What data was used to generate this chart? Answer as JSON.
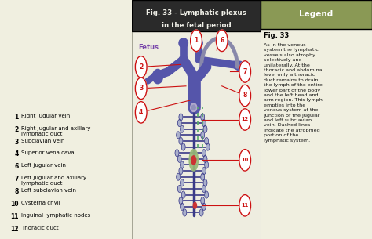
{
  "title_line1": "Fig. 33 - Lymphatic plexus",
  "title_line2": "in the fetal period",
  "title_bg": "#2a2a2a",
  "title_fg": "#f0f0e8",
  "fetus_label": "Fetus",
  "fetus_color": "#7744aa",
  "bg_color": "#f0efe0",
  "center_bg": "#eeede0",
  "border_color": "#888877",
  "legend_header": "Legend",
  "legend_header_bg": "#8a9955",
  "legend_header_fg": "#ffffff",
  "legend_title": "Fig. 33",
  "legend_text": "As in the venous\nsystem the lymphatic\nvessels also atrophy\nselectively and\nunilaterally. At the\nthoracic and abdominal\nlevel only a thoracic\nduct remains to drain\nthe lymph of the entire\nlower part of the body\nand the left head and\narm region. This lymph\nempties into the\nvenous system at the\njunction of the jugular\nand left subclavian\nvein. Dashed lines\nindicate the atrophied\nportion of the\nlymphatic system.",
  "vessel_color": "#5555aa",
  "vessel_mid": "#6655aa",
  "vessel_dark": "#3a3a88",
  "vessel_light": "#8877cc",
  "gray_vessel": "#8888aa",
  "duct_thin": "#4444aa",
  "dashed_color": "#55aa66",
  "node_dot": "#99bb77",
  "node_dot_dark": "#778855",
  "callout_color": "#cc1111",
  "callout_bg": "#ffffff",
  "label_numbers": [
    "1",
    "2",
    "3",
    "4",
    "6",
    "7",
    "8",
    "10",
    "11",
    "12"
  ],
  "label_texts": [
    "Right jugular vein",
    "Right jugular and axillary\nlymphatic duct",
    "Subclavian vein",
    "Superior vena cava",
    "Left jugular vein",
    "Left jugular and axillary\nlymphatic duct",
    "Left subclavian vein",
    "Cysterna chyli",
    "Inguinal lymphatic nodes",
    "Thoracic duct"
  ]
}
